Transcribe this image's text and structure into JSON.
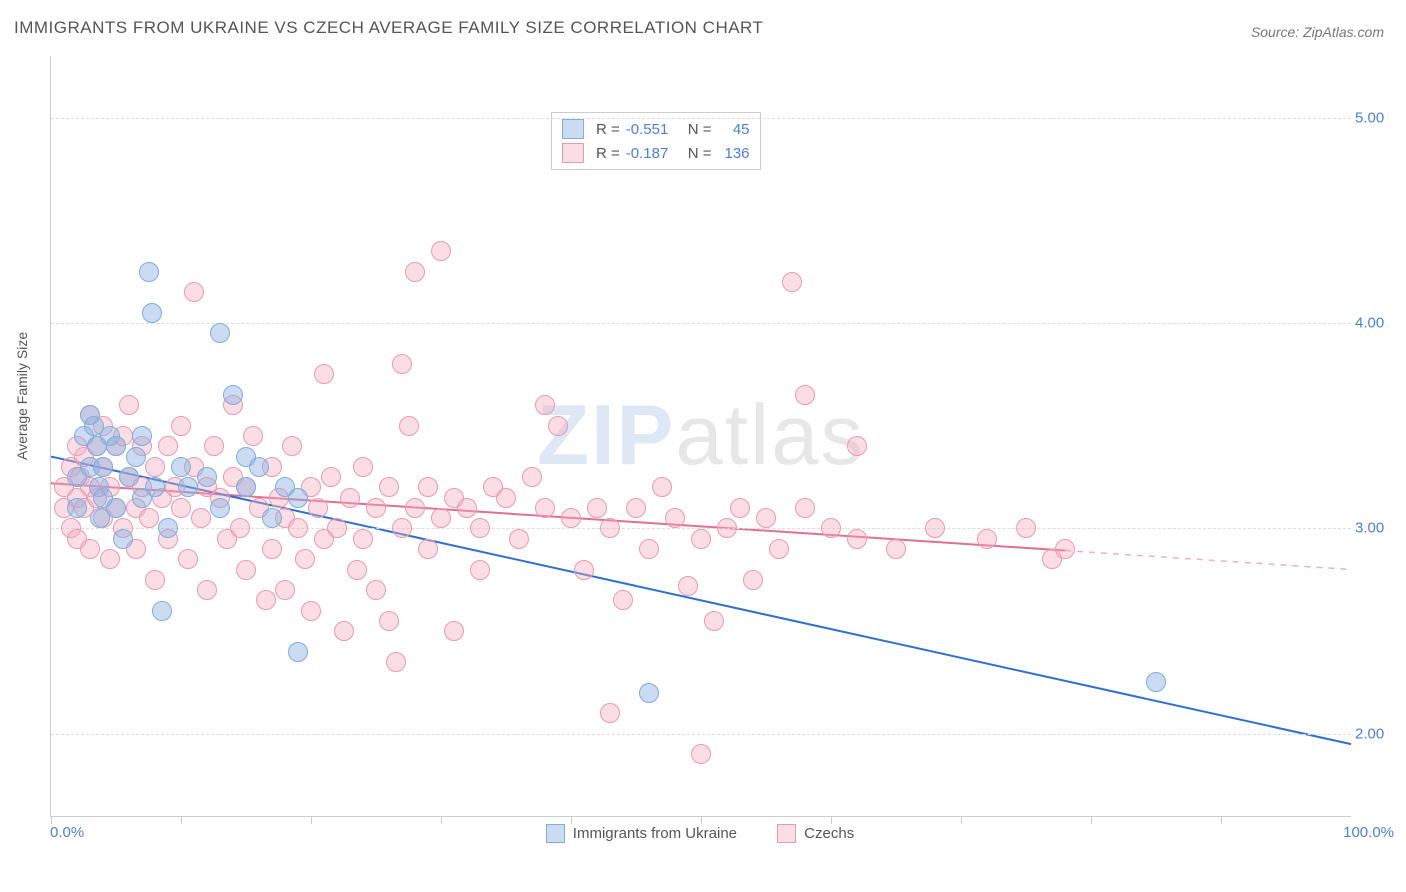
{
  "title": "IMMIGRANTS FROM UKRAINE VS CZECH AVERAGE FAMILY SIZE CORRELATION CHART",
  "source": "Source: ZipAtlas.com",
  "ylabel": "Average Family Size",
  "watermark_a": "ZIP",
  "watermark_b": "atlas",
  "chart": {
    "type": "scatter",
    "background_color": "#ffffff",
    "grid_color": "#dddddd",
    "axis_color": "#cccccc",
    "xlim": [
      0,
      100
    ],
    "x_left_label": "0.0%",
    "x_right_label": "100.0%",
    "x_ticks": [
      0,
      10,
      20,
      30,
      40,
      50,
      60,
      70,
      80,
      90
    ],
    "ylim": [
      1.6,
      5.3
    ],
    "y_ticks": [
      2.0,
      3.0,
      4.0,
      5.0
    ],
    "y_tick_labels": [
      "2.00",
      "3.00",
      "4.00",
      "5.00"
    ],
    "tick_label_color": "#4a7fd8",
    "point_radius": 9
  },
  "series_a": {
    "label": "Immigrants from Ukraine",
    "fill": "rgba(140, 175, 225, 0.45)",
    "stroke": "#7faedb",
    "line_color": "#2f6fd0",
    "R": "-0.551",
    "N": "45",
    "regression": {
      "x1": 0,
      "y1": 3.35,
      "x2": 100,
      "y2": 1.95,
      "x_solid_end": 100
    },
    "points": [
      [
        2,
        3.25
      ],
      [
        2,
        3.1
      ],
      [
        2.5,
        3.45
      ],
      [
        3,
        3.3
      ],
      [
        3,
        3.55
      ],
      [
        3.3,
        3.5
      ],
      [
        3.5,
        3.4
      ],
      [
        3.7,
        3.2
      ],
      [
        3.8,
        3.05
      ],
      [
        4,
        3.3
      ],
      [
        4,
        3.15
      ],
      [
        4.5,
        3.45
      ],
      [
        5,
        3.1
      ],
      [
        5,
        3.4
      ],
      [
        5.5,
        2.95
      ],
      [
        6,
        3.25
      ],
      [
        6.5,
        3.35
      ],
      [
        7,
        3.15
      ],
      [
        7,
        3.45
      ],
      [
        7.5,
        4.25
      ],
      [
        7.8,
        4.05
      ],
      [
        8,
        3.2
      ],
      [
        8.5,
        2.6
      ],
      [
        9,
        3.0
      ],
      [
        10,
        3.3
      ],
      [
        10.5,
        3.2
      ],
      [
        12,
        3.25
      ],
      [
        13,
        3.95
      ],
      [
        13,
        3.1
      ],
      [
        14,
        3.65
      ],
      [
        15,
        3.2
      ],
      [
        15,
        3.35
      ],
      [
        16,
        3.3
      ],
      [
        17,
        3.05
      ],
      [
        18,
        3.2
      ],
      [
        19,
        2.4
      ],
      [
        19,
        3.15
      ],
      [
        46,
        2.2
      ],
      [
        85,
        2.25
      ]
    ]
  },
  "series_b": {
    "label": "Czechs",
    "fill": "rgba(245, 170, 190, 0.40)",
    "stroke": "#e99ab0",
    "line_color": "#e26f90",
    "R": "-0.187",
    "N": "136",
    "regression": {
      "x1": 0,
      "y1": 3.22,
      "x2": 100,
      "y2": 2.8,
      "x_solid_end": 78
    },
    "points": [
      [
        1,
        3.1
      ],
      [
        1,
        3.2
      ],
      [
        1.5,
        3.3
      ],
      [
        1.5,
        3.0
      ],
      [
        2,
        3.15
      ],
      [
        2,
        3.4
      ],
      [
        2,
        2.95
      ],
      [
        2.2,
        3.25
      ],
      [
        2.5,
        3.1
      ],
      [
        2.5,
        3.35
      ],
      [
        3,
        3.2
      ],
      [
        3,
        3.55
      ],
      [
        3,
        2.9
      ],
      [
        3.5,
        3.4
      ],
      [
        3.5,
        3.15
      ],
      [
        4,
        3.3
      ],
      [
        4,
        3.05
      ],
      [
        4,
        3.5
      ],
      [
        4.5,
        3.2
      ],
      [
        4.5,
        2.85
      ],
      [
        5,
        3.1
      ],
      [
        5,
        3.4
      ],
      [
        5.5,
        3.0
      ],
      [
        5.5,
        3.45
      ],
      [
        6,
        3.25
      ],
      [
        6,
        3.6
      ],
      [
        6.5,
        3.1
      ],
      [
        6.5,
        2.9
      ],
      [
        7,
        3.2
      ],
      [
        7,
        3.4
      ],
      [
        7.5,
        3.05
      ],
      [
        8,
        3.3
      ],
      [
        8,
        2.75
      ],
      [
        8.5,
        3.15
      ],
      [
        9,
        3.4
      ],
      [
        9,
        2.95
      ],
      [
        9.5,
        3.2
      ],
      [
        10,
        3.1
      ],
      [
        10,
        3.5
      ],
      [
        10.5,
        2.85
      ],
      [
        11,
        3.3
      ],
      [
        11,
        4.15
      ],
      [
        11.5,
        3.05
      ],
      [
        12,
        3.2
      ],
      [
        12,
        2.7
      ],
      [
        12.5,
        3.4
      ],
      [
        13,
        3.15
      ],
      [
        13.5,
        2.95
      ],
      [
        14,
        3.25
      ],
      [
        14,
        3.6
      ],
      [
        14.5,
        3.0
      ],
      [
        15,
        3.2
      ],
      [
        15,
        2.8
      ],
      [
        15.5,
        3.45
      ],
      [
        16,
        3.1
      ],
      [
        16.5,
        2.65
      ],
      [
        17,
        3.3
      ],
      [
        17,
        2.9
      ],
      [
        17.5,
        3.15
      ],
      [
        18,
        3.05
      ],
      [
        18,
        2.7
      ],
      [
        18.5,
        3.4
      ],
      [
        19,
        3.0
      ],
      [
        19.5,
        2.85
      ],
      [
        20,
        3.2
      ],
      [
        20,
        2.6
      ],
      [
        20.5,
        3.1
      ],
      [
        21,
        2.95
      ],
      [
        21,
        3.75
      ],
      [
        21.5,
        3.25
      ],
      [
        22,
        3.0
      ],
      [
        22.5,
        2.5
      ],
      [
        23,
        3.15
      ],
      [
        23.5,
        2.8
      ],
      [
        24,
        3.3
      ],
      [
        24,
        2.95
      ],
      [
        25,
        3.1
      ],
      [
        25,
        2.7
      ],
      [
        26,
        2.55
      ],
      [
        26,
        3.2
      ],
      [
        26.5,
        2.35
      ],
      [
        27,
        3.0
      ],
      [
        27,
        3.8
      ],
      [
        27.5,
        3.5
      ],
      [
        28,
        3.1
      ],
      [
        28,
        4.25
      ],
      [
        29,
        3.2
      ],
      [
        29,
        2.9
      ],
      [
        30,
        3.05
      ],
      [
        30,
        4.35
      ],
      [
        31,
        3.15
      ],
      [
        31,
        2.5
      ],
      [
        32,
        3.1
      ],
      [
        33,
        3.0
      ],
      [
        33,
        2.8
      ],
      [
        34,
        3.2
      ],
      [
        35,
        3.15
      ],
      [
        36,
        2.95
      ],
      [
        37,
        3.25
      ],
      [
        38,
        3.1
      ],
      [
        38,
        3.6
      ],
      [
        39,
        3.5
      ],
      [
        40,
        3.05
      ],
      [
        41,
        2.8
      ],
      [
        42,
        3.1
      ],
      [
        43,
        2.1
      ],
      [
        43,
        3.0
      ],
      [
        44,
        2.65
      ],
      [
        45,
        3.1
      ],
      [
        46,
        2.9
      ],
      [
        47,
        3.2
      ],
      [
        48,
        3.05
      ],
      [
        49,
        2.72
      ],
      [
        50,
        1.9
      ],
      [
        50,
        2.95
      ],
      [
        51,
        2.55
      ],
      [
        52,
        3.0
      ],
      [
        53,
        3.1
      ],
      [
        54,
        2.75
      ],
      [
        55,
        3.05
      ],
      [
        56,
        2.9
      ],
      [
        57,
        4.2
      ],
      [
        58,
        3.1
      ],
      [
        58,
        3.65
      ],
      [
        60,
        3.0
      ],
      [
        62,
        2.95
      ],
      [
        62,
        3.4
      ],
      [
        65,
        2.9
      ],
      [
        68,
        3.0
      ],
      [
        72,
        2.95
      ],
      [
        75,
        3.0
      ],
      [
        77,
        2.85
      ],
      [
        78,
        2.9
      ]
    ]
  }
}
